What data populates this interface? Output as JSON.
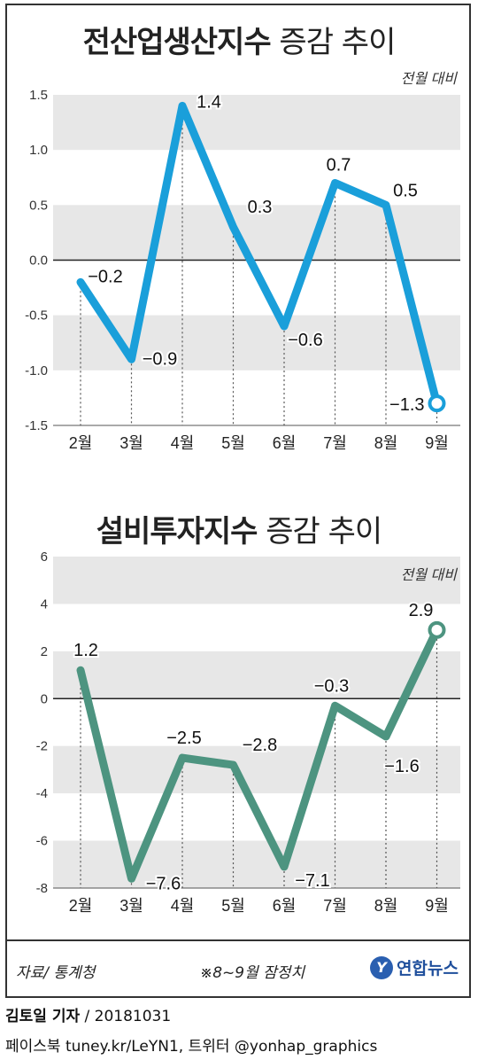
{
  "charts": {
    "production": {
      "title_bold": "전산업생산지수",
      "title_rest": "증감 추이",
      "unit_note": "전월 대비",
      "line_color": "#1a9fda"
    },
    "investment": {
      "title_bold": "설비투자지수",
      "title_rest": "증감 추이",
      "unit_note": "전월 대비",
      "line_color": "#4d9480"
    }
  },
  "chart_data": [
    {
      "type": "line",
      "title": "전산업생산지수 증감 추이",
      "note": "전월 대비",
      "categories": [
        "2월",
        "3월",
        "4월",
        "5월",
        "6월",
        "7월",
        "8월",
        "9월"
      ],
      "values": [
        -0.2,
        -0.9,
        1.4,
        0.3,
        -0.6,
        0.7,
        0.5,
        -1.3
      ],
      "labels": [
        "−0.2",
        "−0.9",
        "1.4",
        "0.3",
        "−0.6",
        "0.7",
        "0.5",
        "−1.3"
      ],
      "yticks": [
        "1.5",
        "1.0",
        "0.5",
        "0.0",
        "-0.5",
        "-1.0",
        "-1.5"
      ],
      "ylim": [
        -1.5,
        1.5
      ],
      "color": "#1a9fda",
      "grid": "alternating bands"
    },
    {
      "type": "line",
      "title": "설비투자지수 증감 추이",
      "note": "전월 대비",
      "categories": [
        "2월",
        "3월",
        "4월",
        "5월",
        "6월",
        "7월",
        "8월",
        "9월"
      ],
      "values": [
        1.2,
        -7.6,
        -2.5,
        -2.8,
        -7.1,
        -0.3,
        -1.6,
        2.9
      ],
      "labels": [
        "1.2",
        "−7.6",
        "−2.5",
        "−2.8",
        "−7.1",
        "−0.3",
        "−1.6",
        "2.9"
      ],
      "yticks": [
        "6",
        "4",
        "2",
        "0",
        "-2",
        "-4",
        "-6",
        "-8"
      ],
      "ylim": [
        -8,
        6
      ],
      "color": "#4d9480",
      "grid": "alternating bands"
    }
  ],
  "footer": {
    "source": "자료/ 통계청",
    "note": "※8~9월 잠정치",
    "logo_mark": "Y",
    "logo_text": "연합뉴스",
    "reporter": "김토일 기자",
    "date": " / 20181031",
    "social": "페이스북 tuney.kr/LeYN1, 트위터 @yonhap_graphics"
  }
}
